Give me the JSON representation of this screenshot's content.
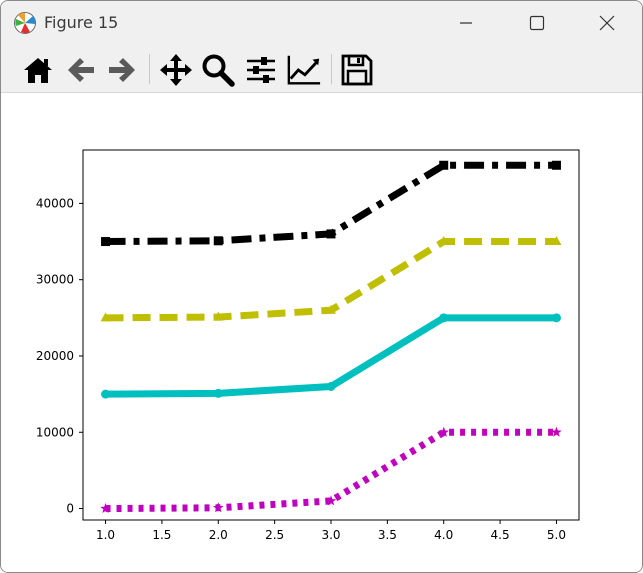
{
  "window": {
    "title": "Figure 15",
    "icon": "matplotlib-logo-icon",
    "controls": [
      "minimize-icon",
      "maximize-icon",
      "close-icon"
    ]
  },
  "toolbar": {
    "buttons": [
      {
        "name": "home",
        "icon": "home-icon"
      },
      {
        "name": "back",
        "icon": "arrow-left-icon"
      },
      {
        "name": "forward",
        "icon": "arrow-right-icon"
      },
      {
        "name": "pan",
        "icon": "move-icon"
      },
      {
        "name": "zoom",
        "icon": "magnifier-icon"
      },
      {
        "name": "configure-subplots",
        "icon": "sliders-icon"
      },
      {
        "name": "edit-axis",
        "icon": "line-chart-icon"
      },
      {
        "name": "save",
        "icon": "floppy-disk-icon"
      }
    ]
  },
  "chart_data": {
    "type": "line",
    "title": "",
    "xlabel": "",
    "ylabel": "",
    "x": [
      1,
      2,
      3,
      4,
      5
    ],
    "xlim": [
      0.8,
      5.2
    ],
    "ylim": [
      -1500,
      47000
    ],
    "xticks": [
      1.0,
      1.5,
      2.0,
      2.5,
      3.0,
      3.5,
      4.0,
      4.5,
      5.0
    ],
    "xtick_labels": [
      "1.0",
      "1.5",
      "2.0",
      "2.5",
      "3.0",
      "3.5",
      "4.0",
      "4.5",
      "5.0"
    ],
    "yticks": [
      0,
      10000,
      20000,
      30000,
      40000
    ],
    "ytick_labels": [
      "0",
      "10000",
      "20000",
      "30000",
      "40000"
    ],
    "grid": false,
    "legend": false,
    "series": [
      {
        "values": [
          0,
          100,
          1000,
          10000,
          10000
        ],
        "color": "#bf00bf",
        "linestyle": "dotted",
        "marker": "star"
      },
      {
        "values": [
          15000,
          15100,
          16000,
          25000,
          25000
        ],
        "color": "#00bfbf",
        "linestyle": "solid",
        "marker": "circle"
      },
      {
        "values": [
          25000,
          25100,
          26000,
          35000,
          35000
        ],
        "color": "#bfbf00",
        "linestyle": "dashed",
        "marker": "triangle"
      },
      {
        "values": [
          35000,
          35100,
          36000,
          45000,
          45000
        ],
        "color": "#000000",
        "linestyle": "dashdot",
        "marker": "square"
      }
    ]
  }
}
